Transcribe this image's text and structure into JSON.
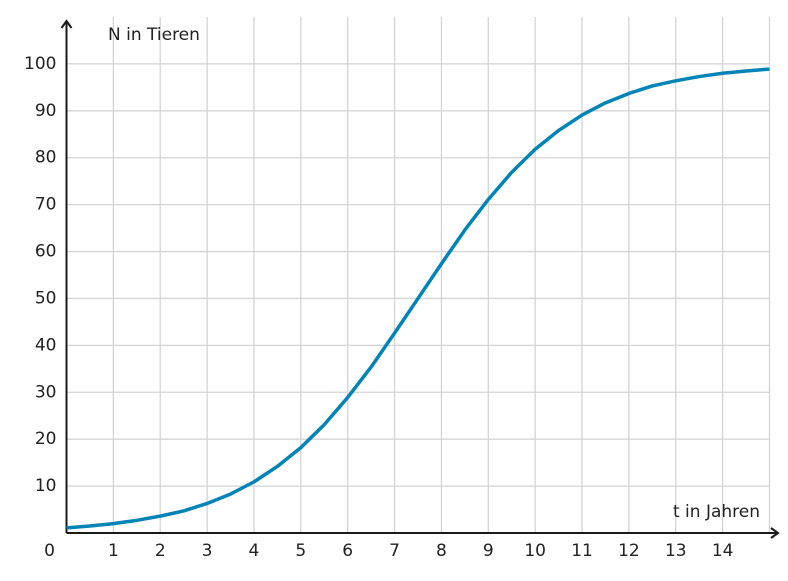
{
  "chart_data": {
    "type": "line",
    "x_label": "t in Jahren",
    "y_label": "N in Tieren",
    "xlim": [
      0,
      15
    ],
    "ylim": [
      0,
      110
    ],
    "xticks": [
      0,
      1,
      2,
      3,
      4,
      5,
      6,
      7,
      8,
      9,
      10,
      11,
      12,
      13,
      14
    ],
    "yticks": [
      10,
      20,
      30,
      40,
      50,
      60,
      70,
      80,
      90,
      100
    ],
    "grid": true,
    "x": [
      0,
      0.5,
      1,
      1.5,
      2,
      2.5,
      3,
      3.5,
      4,
      4.5,
      5,
      5.5,
      6,
      6.5,
      7,
      7.5,
      8,
      8.5,
      9,
      9.5,
      10,
      10.5,
      11,
      11.5,
      12,
      12.5,
      13,
      13.5,
      14,
      14.5,
      15
    ],
    "series": [
      {
        "color": "#0084b8",
        "values": [
          1.1,
          1.5,
          2.0,
          2.7,
          3.6,
          4.7,
          6.3,
          8.3,
          10.9,
          14.2,
          18.2,
          23.1,
          28.9,
          35.4,
          42.6,
          50.0,
          57.4,
          64.6,
          71.1,
          76.9,
          81.8,
          85.8,
          89.1,
          91.7,
          93.7,
          95.3,
          96.4,
          97.3,
          98.0,
          98.5,
          98.9
        ]
      }
    ]
  }
}
